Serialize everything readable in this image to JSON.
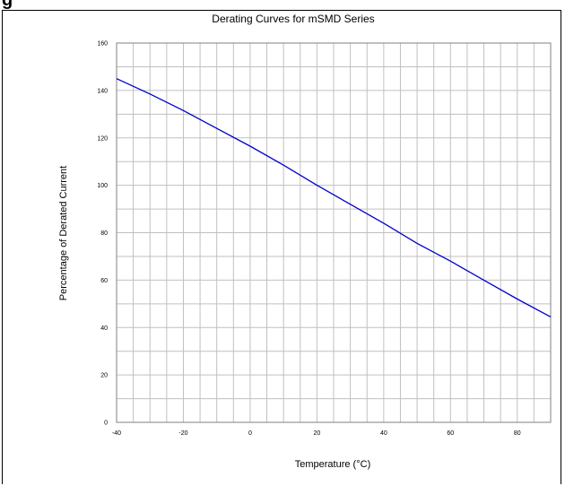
{
  "header_fragment": "g",
  "chart_data": {
    "type": "line",
    "title": "Derating Curves for mSMD Series",
    "xlabel": "Temperature (°C)",
    "ylabel": "Percentage of Derated Current",
    "xlim": [
      -40,
      90
    ],
    "ylim": [
      0,
      160
    ],
    "x_ticks": [
      "-40",
      "-20",
      "0",
      "20",
      "40",
      "60",
      "80"
    ],
    "y_ticks": [
      "0",
      "20",
      "40",
      "60",
      "80",
      "100",
      "120",
      "140",
      "160"
    ],
    "grid": true,
    "series": [
      {
        "color": "#0000cc",
        "x": [
          -40,
          -30,
          -20,
          -10,
          0,
          10,
          20,
          30,
          40,
          50,
          60,
          70,
          80,
          90
        ],
        "y": [
          145,
          138.5,
          131.5,
          124,
          116.5,
          108.5,
          100,
          92,
          84,
          75.5,
          68,
          60,
          52,
          44.5
        ]
      }
    ]
  }
}
